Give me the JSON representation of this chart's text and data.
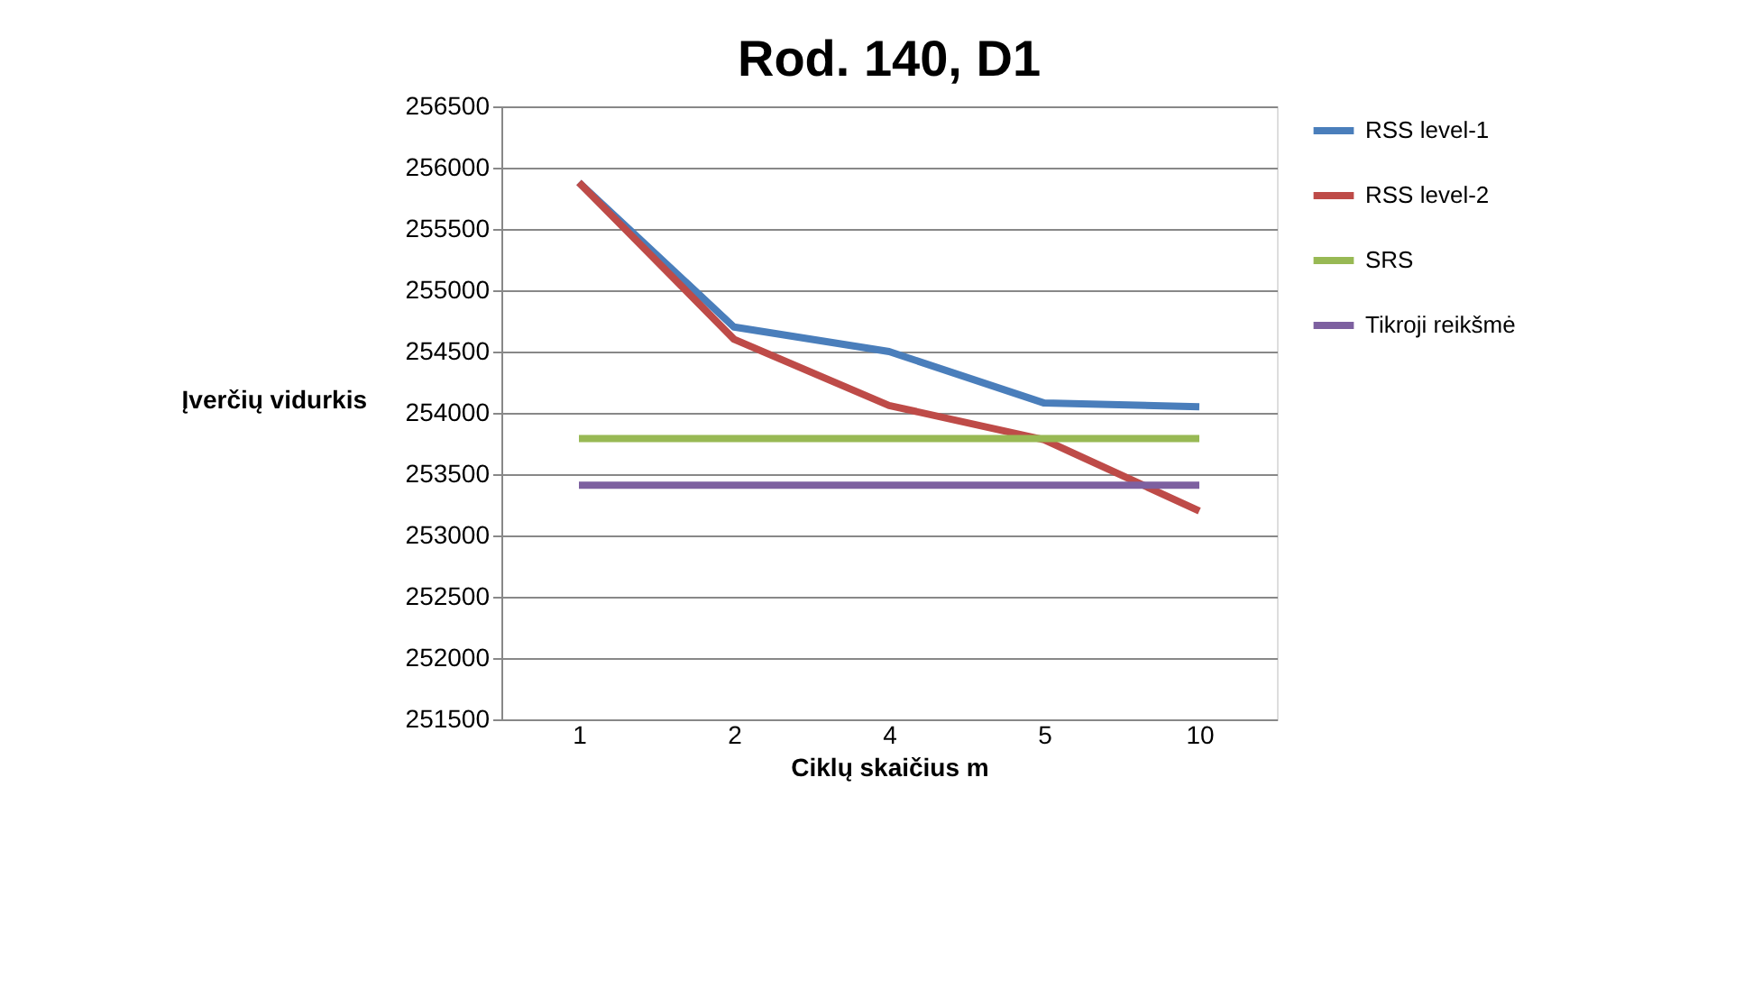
{
  "chart_data": {
    "type": "line",
    "title": "Rod. 140, D1",
    "xlabel": "Ciklų skaičius  m",
    "ylabel": "Įverčių vidurkis",
    "categories": [
      "1",
      "2",
      "4",
      "5",
      "10"
    ],
    "series": [
      {
        "name": "RSS level-1",
        "color": "#4a7ebb",
        "values": [
          255880,
          254700,
          254500,
          254080,
          254050
        ]
      },
      {
        "name": "RSS level-2",
        "color": "#be4b48",
        "values": [
          255880,
          254600,
          254060,
          253780,
          253200
        ]
      },
      {
        "name": "SRS",
        "color": "#98b954",
        "values": [
          253790,
          253790,
          253790,
          253790,
          253790
        ]
      },
      {
        "name": "Tikroji reikšmė",
        "color": "#7d60a0",
        "values": [
          253410,
          253410,
          253410,
          253410,
          253410
        ]
      }
    ],
    "ylim": [
      251500,
      256500
    ],
    "yticks": [
      251500,
      252000,
      252500,
      253000,
      253500,
      254000,
      254500,
      255000,
      255500,
      256000,
      256500
    ],
    "grid": "y",
    "legend": "right",
    "marker": "none",
    "line_style": "solid"
  }
}
